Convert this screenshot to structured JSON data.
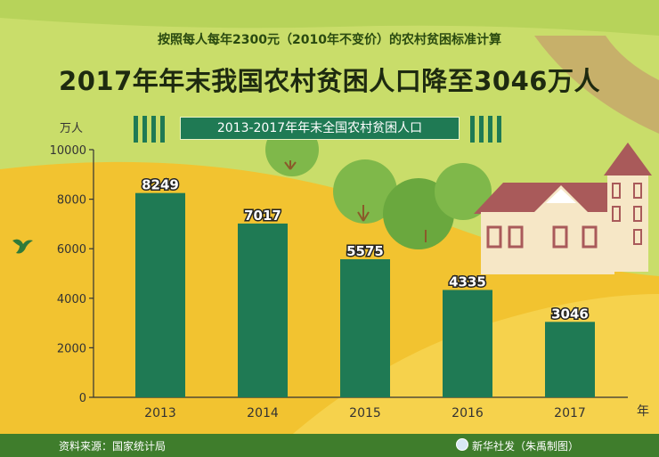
{
  "subtitle": "按照每人每年2300元（2010年不变价）的农村贫困标准计算",
  "title": "2017年年末我国农村贫困人口降至3046万人",
  "chart_title": "2013-2017年年末全国农村贫困人口",
  "footer": {
    "source": "资料来源：国家统计局",
    "credit": "新华社发（朱禹制图）"
  },
  "colors": {
    "bar": "#1f7a54",
    "footer": "#3f7d2c",
    "field_light": "#c9dd6a",
    "field_dark": "#f2c330"
  },
  "chart_data": {
    "type": "bar",
    "categories": [
      "2013",
      "2014",
      "2015",
      "2016",
      "2017"
    ],
    "values": [
      8249,
      7017,
      5575,
      4335,
      3046
    ],
    "ylabel": "万人",
    "xlabel": "年",
    "ylim": [
      0,
      10000
    ],
    "yticks": [
      0,
      2000,
      4000,
      6000,
      8000,
      10000
    ],
    "grid": false,
    "legend": "none"
  }
}
